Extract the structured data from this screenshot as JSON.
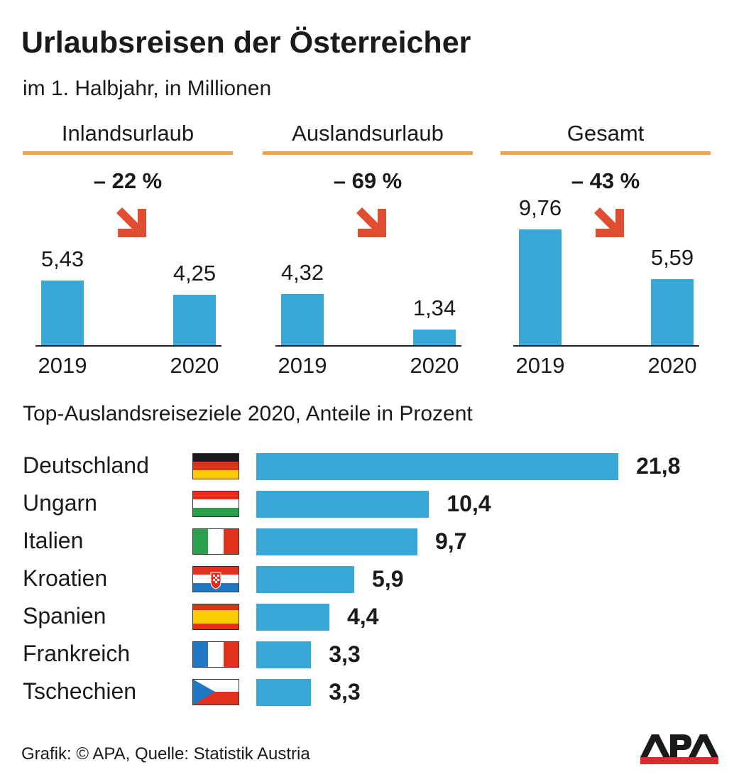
{
  "title": "Urlaubsreisen der Österreicher",
  "subtitle": "im 1. Halbjahr, in Millionen",
  "chart_data": [
    {
      "type": "bar",
      "panels": [
        {
          "title": "Inlandsurlaub",
          "change": "– 22 %",
          "categories": [
            "2019",
            "2020"
          ],
          "values": [
            5.43,
            4.25
          ],
          "labels": [
            "5,43",
            "4,25"
          ]
        },
        {
          "title": "Auslandsurlaub",
          "change": "– 69 %",
          "categories": [
            "2019",
            "2020"
          ],
          "values": [
            4.32,
            1.34
          ],
          "labels": [
            "4,32",
            "1,34"
          ]
        },
        {
          "title": "Gesamt",
          "change": "– 43 %",
          "categories": [
            "2019",
            "2020"
          ],
          "values": [
            9.76,
            5.59
          ],
          "labels": [
            "9,76",
            "5,59"
          ]
        }
      ],
      "color": "#3aa8d6",
      "arrow_color": "#e04e32"
    },
    {
      "type": "bar",
      "orientation": "horizontal",
      "title": "Top-Auslandsreiseziele 2020, Anteile in Prozent",
      "categories": [
        "Deutschland",
        "Ungarn",
        "Italien",
        "Kroatien",
        "Spanien",
        "Frankreich",
        "Tschechien"
      ],
      "flags": [
        "de",
        "hu",
        "it",
        "hr",
        "es",
        "fr",
        "cz"
      ],
      "values": [
        21.8,
        10.4,
        9.7,
        5.9,
        4.4,
        3.3,
        3.3
      ],
      "labels": [
        "21,8",
        "10,4",
        "9,7",
        "5,9",
        "4,4",
        "3,3",
        "3,3"
      ],
      "color": "#3aa8d6"
    }
  ],
  "source": "Grafik: © APA, Quelle: Statistik Austria",
  "logo": "APA"
}
